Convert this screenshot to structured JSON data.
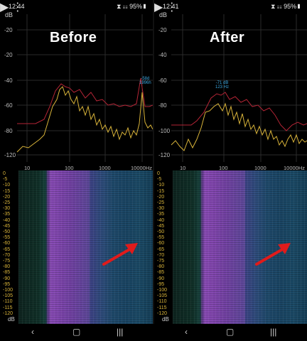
{
  "left": {
    "time": "12:44",
    "status_icons": "⧗ ☷ 95%▮",
    "title": "Before",
    "peak_db": "-58d",
    "peak_hz": "1996h",
    "x_last": "10000Hz"
  },
  "right": {
    "time": "12:41",
    "status_icons": "⧗ ☷ 95%▮",
    "title": "After",
    "peak_db": "-71 dB",
    "peak_hz": "123 Hz",
    "x_last": "10000Hz"
  },
  "toolbar": {
    "play_icon": "▶",
    "menu_icon": "⋮"
  },
  "units": {
    "top": "dB",
    "bottom": "dB"
  },
  "y_labels": [
    "-20",
    "-40",
    "-60",
    "-80",
    "-100",
    "-120"
  ],
  "x_labels": [
    "10",
    "100",
    "1000"
  ],
  "spectrogram_labels": [
    "0",
    "-5",
    "-10",
    "-15",
    "-20",
    "-25",
    "-30",
    "-35",
    "-40",
    "-45",
    "-50",
    "-55",
    "-60",
    "-65",
    "-70",
    "-75",
    "-80",
    "-85",
    "-90",
    "-95",
    "-100",
    "-105",
    "-110",
    "-115",
    "-120"
  ],
  "navbar": {
    "back_icon": "‹",
    "home_icon": "▢",
    "recents_icon": "|||"
  },
  "colors": {
    "yellow_trace": "#d9b43a",
    "red_trace": "#b52536",
    "arrow": "#e01b1b",
    "peak_label": "#3aa6e0"
  }
}
